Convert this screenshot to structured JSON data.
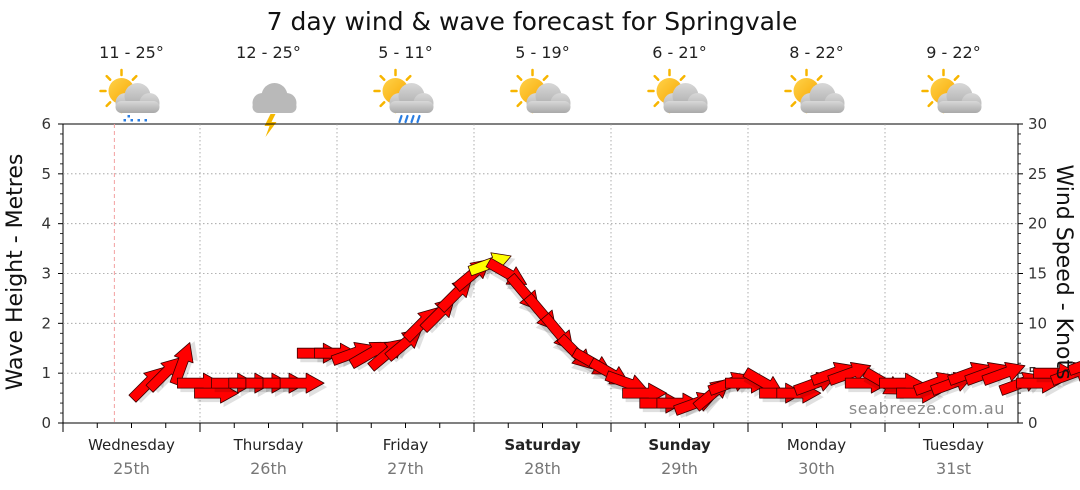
{
  "chart_data": {
    "type": "line",
    "title": "7 day wind & wave forecast for Springvale",
    "ylabel_left": "Wave Height - Metres",
    "ylabel_right": "Wind Speed - Knots",
    "ylim_left": [
      0,
      6
    ],
    "ylim_right": [
      0,
      30
    ],
    "yticks_left": [
      "0",
      "1",
      "2",
      "3",
      "4",
      "5",
      "6"
    ],
    "yticks_right": [
      "0",
      "5",
      "10",
      "15",
      "20",
      "25",
      "30"
    ],
    "days": [
      {
        "name": "Wednesday",
        "date": "25th",
        "temp": "11 - 25°",
        "icon": "sun-cloud-drizzle-icon",
        "bold": false
      },
      {
        "name": "Thursday",
        "date": "26th",
        "temp": "12 - 25°",
        "icon": "storm-cloud-icon",
        "bold": false
      },
      {
        "name": "Friday",
        "date": "27th",
        "temp": "5 - 11°",
        "icon": "sun-cloud-rain-icon",
        "bold": false
      },
      {
        "name": "Saturday",
        "date": "28th",
        "temp": "5 - 19°",
        "icon": "partly-cloudy-icon",
        "bold": true
      },
      {
        "name": "Sunday",
        "date": "29th",
        "temp": "6 - 21°",
        "icon": "partly-cloudy-icon",
        "bold": true
      },
      {
        "name": "Monday",
        "date": "30th",
        "temp": "8 - 22°",
        "icon": "partly-cloudy-icon",
        "bold": false
      },
      {
        "name": "Tuesday",
        "date": "31st",
        "temp": "9 - 22°",
        "icon": "partly-cloudy-icon",
        "bold": false
      }
    ],
    "wind_series": {
      "name": "Wind Speed - Knots",
      "x_hours": [
        0,
        3,
        6,
        9,
        12,
        15,
        18,
        21,
        24,
        27,
        30,
        33,
        36,
        39,
        42,
        45,
        48,
        51,
        54,
        57,
        60,
        63,
        66,
        69,
        72,
        75,
        78,
        81,
        84,
        87,
        90,
        93,
        96,
        99,
        102,
        105,
        108,
        111,
        114,
        117,
        120,
        123,
        126,
        129,
        132,
        135,
        138,
        141,
        144,
        147,
        150,
        153,
        156,
        159,
        162,
        165
      ],
      "speed": [
        4,
        5,
        6,
        4,
        3,
        4,
        4,
        4,
        4,
        4,
        7,
        7,
        7,
        7,
        7,
        8,
        10,
        11,
        13,
        15,
        16,
        15,
        13,
        11,
        9,
        7,
        6,
        5,
        4,
        3,
        2,
        2,
        2,
        3,
        4,
        4,
        4,
        3,
        3,
        4,
        5,
        5,
        4,
        4,
        4,
        3,
        4,
        4,
        5,
        5,
        5,
        4,
        4,
        5,
        5,
        6
      ],
      "direction_deg": [
        225,
        225,
        200,
        270,
        270,
        270,
        270,
        270,
        270,
        270,
        270,
        270,
        250,
        240,
        230,
        230,
        225,
        225,
        225,
        230,
        250,
        300,
        320,
        320,
        320,
        315,
        300,
        300,
        290,
        270,
        270,
        270,
        250,
        230,
        250,
        270,
        300,
        270,
        270,
        250,
        250,
        250,
        270,
        300,
        270,
        270,
        250,
        250,
        250,
        250,
        250,
        250,
        270,
        270,
        250,
        250
      ],
      "color_scale": [
        {
          "max": 15,
          "color": "#ff0000"
        },
        {
          "max": 20,
          "color": "#ffff00"
        }
      ]
    },
    "current_time_hour": 9
  },
  "watermark": "seabreeze.com.au"
}
